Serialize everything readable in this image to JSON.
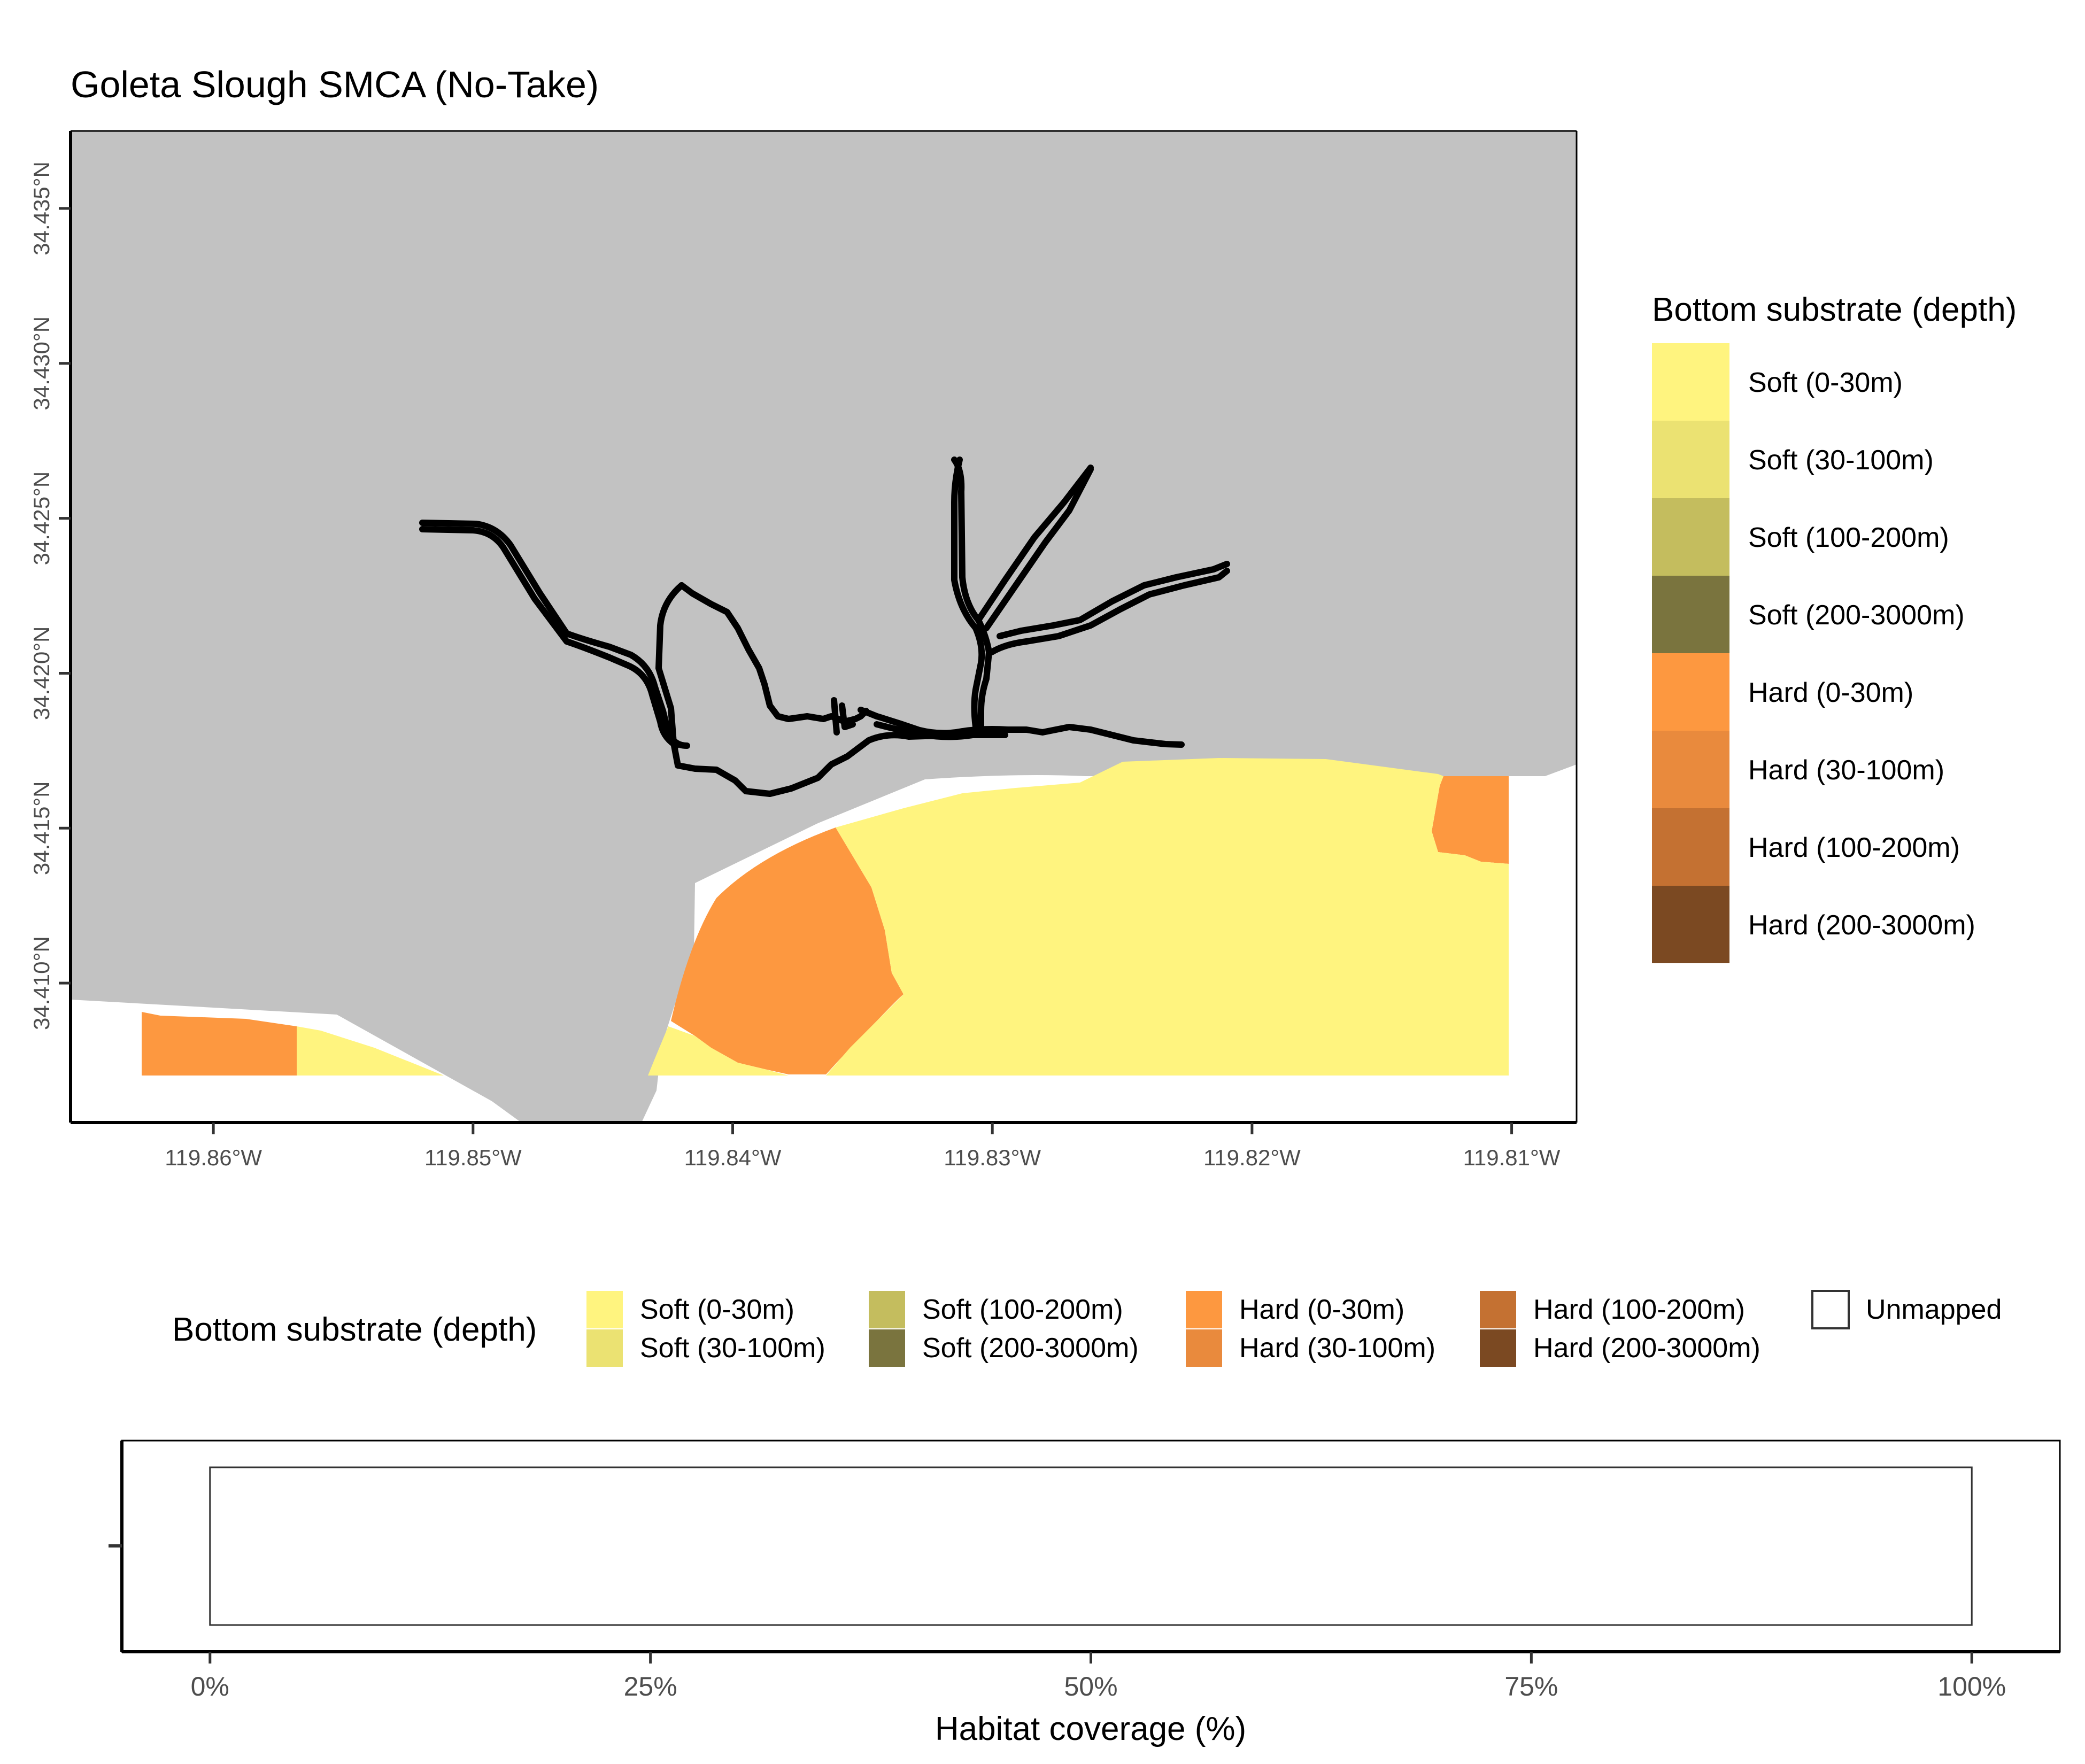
{
  "title": "Goleta Slough SMCA (No-Take)",
  "map": {
    "lon_range": [
      -119.8655,
      -119.8075
    ],
    "lat_range": [
      34.4055,
      34.4375
    ],
    "lon_ticks": [
      {
        "value": -119.86,
        "label": "119.86°W"
      },
      {
        "value": -119.85,
        "label": "119.85°W"
      },
      {
        "value": -119.84,
        "label": "119.84°W"
      },
      {
        "value": -119.83,
        "label": "119.83°W"
      },
      {
        "value": -119.82,
        "label": "119.82°W"
      },
      {
        "value": -119.81,
        "label": "119.81°W"
      }
    ],
    "lat_ticks": [
      {
        "value": 34.41,
        "label": "34.410°N"
      },
      {
        "value": 34.415,
        "label": "34.415°N"
      },
      {
        "value": 34.42,
        "label": "34.420°N"
      },
      {
        "value": 34.425,
        "label": "34.425°N"
      },
      {
        "value": 34.43,
        "label": "34.430°N"
      },
      {
        "value": 34.435,
        "label": "34.435°N"
      }
    ],
    "land_color": "#c2c2c2",
    "boundary_color": "#000000"
  },
  "legend_right": {
    "title": "Bottom substrate (depth)",
    "items": [
      {
        "label": "Soft (0-30m)",
        "color": "#fff47f"
      },
      {
        "label": "Soft (30-100m)",
        "color": "#ebe272"
      },
      {
        "label": "Soft (100-200m)",
        "color": "#c4bd5e"
      },
      {
        "label": "Soft (200-3000m)",
        "color": "#7a743e"
      },
      {
        "label": "Hard (0-30m)",
        "color": "#fd9840"
      },
      {
        "label": "Hard (30-100m)",
        "color": "#e98a3d"
      },
      {
        "label": "Hard (100-200m)",
        "color": "#c47132"
      },
      {
        "label": "Hard (200-3000m)",
        "color": "#7b4922"
      }
    ]
  },
  "legend_bottom": {
    "title": "Bottom substrate (depth)",
    "items": [
      {
        "label": "Soft (0-30m)",
        "color": "#fff47f"
      },
      {
        "label": "Soft (30-100m)",
        "color": "#ebe272"
      },
      {
        "label": "Soft (100-200m)",
        "color": "#c4bd5e"
      },
      {
        "label": "Soft (200-3000m)",
        "color": "#7a743e"
      },
      {
        "label": "Hard (0-30m)",
        "color": "#fd9840"
      },
      {
        "label": "Hard (30-100m)",
        "color": "#e98a3d"
      },
      {
        "label": "Hard (100-200m)",
        "color": "#c47132"
      },
      {
        "label": "Hard (200-3000m)",
        "color": "#7b4922"
      },
      {
        "label": "Unmapped",
        "color": "#ffffff"
      }
    ]
  },
  "chart_data": {
    "type": "bar",
    "orientation": "horizontal",
    "categories": [
      ""
    ],
    "series": [
      {
        "name": "Unmapped",
        "values": [
          100
        ],
        "color": "#ffffff"
      }
    ],
    "xlabel": "Habitat coverage (%)",
    "xlim": [
      -5,
      105
    ],
    "x_ticks": [
      {
        "value": 0,
        "label": "0%"
      },
      {
        "value": 25,
        "label": "25%"
      },
      {
        "value": 50,
        "label": "50%"
      },
      {
        "value": 75,
        "label": "75%"
      },
      {
        "value": 100,
        "label": "100%"
      }
    ]
  }
}
